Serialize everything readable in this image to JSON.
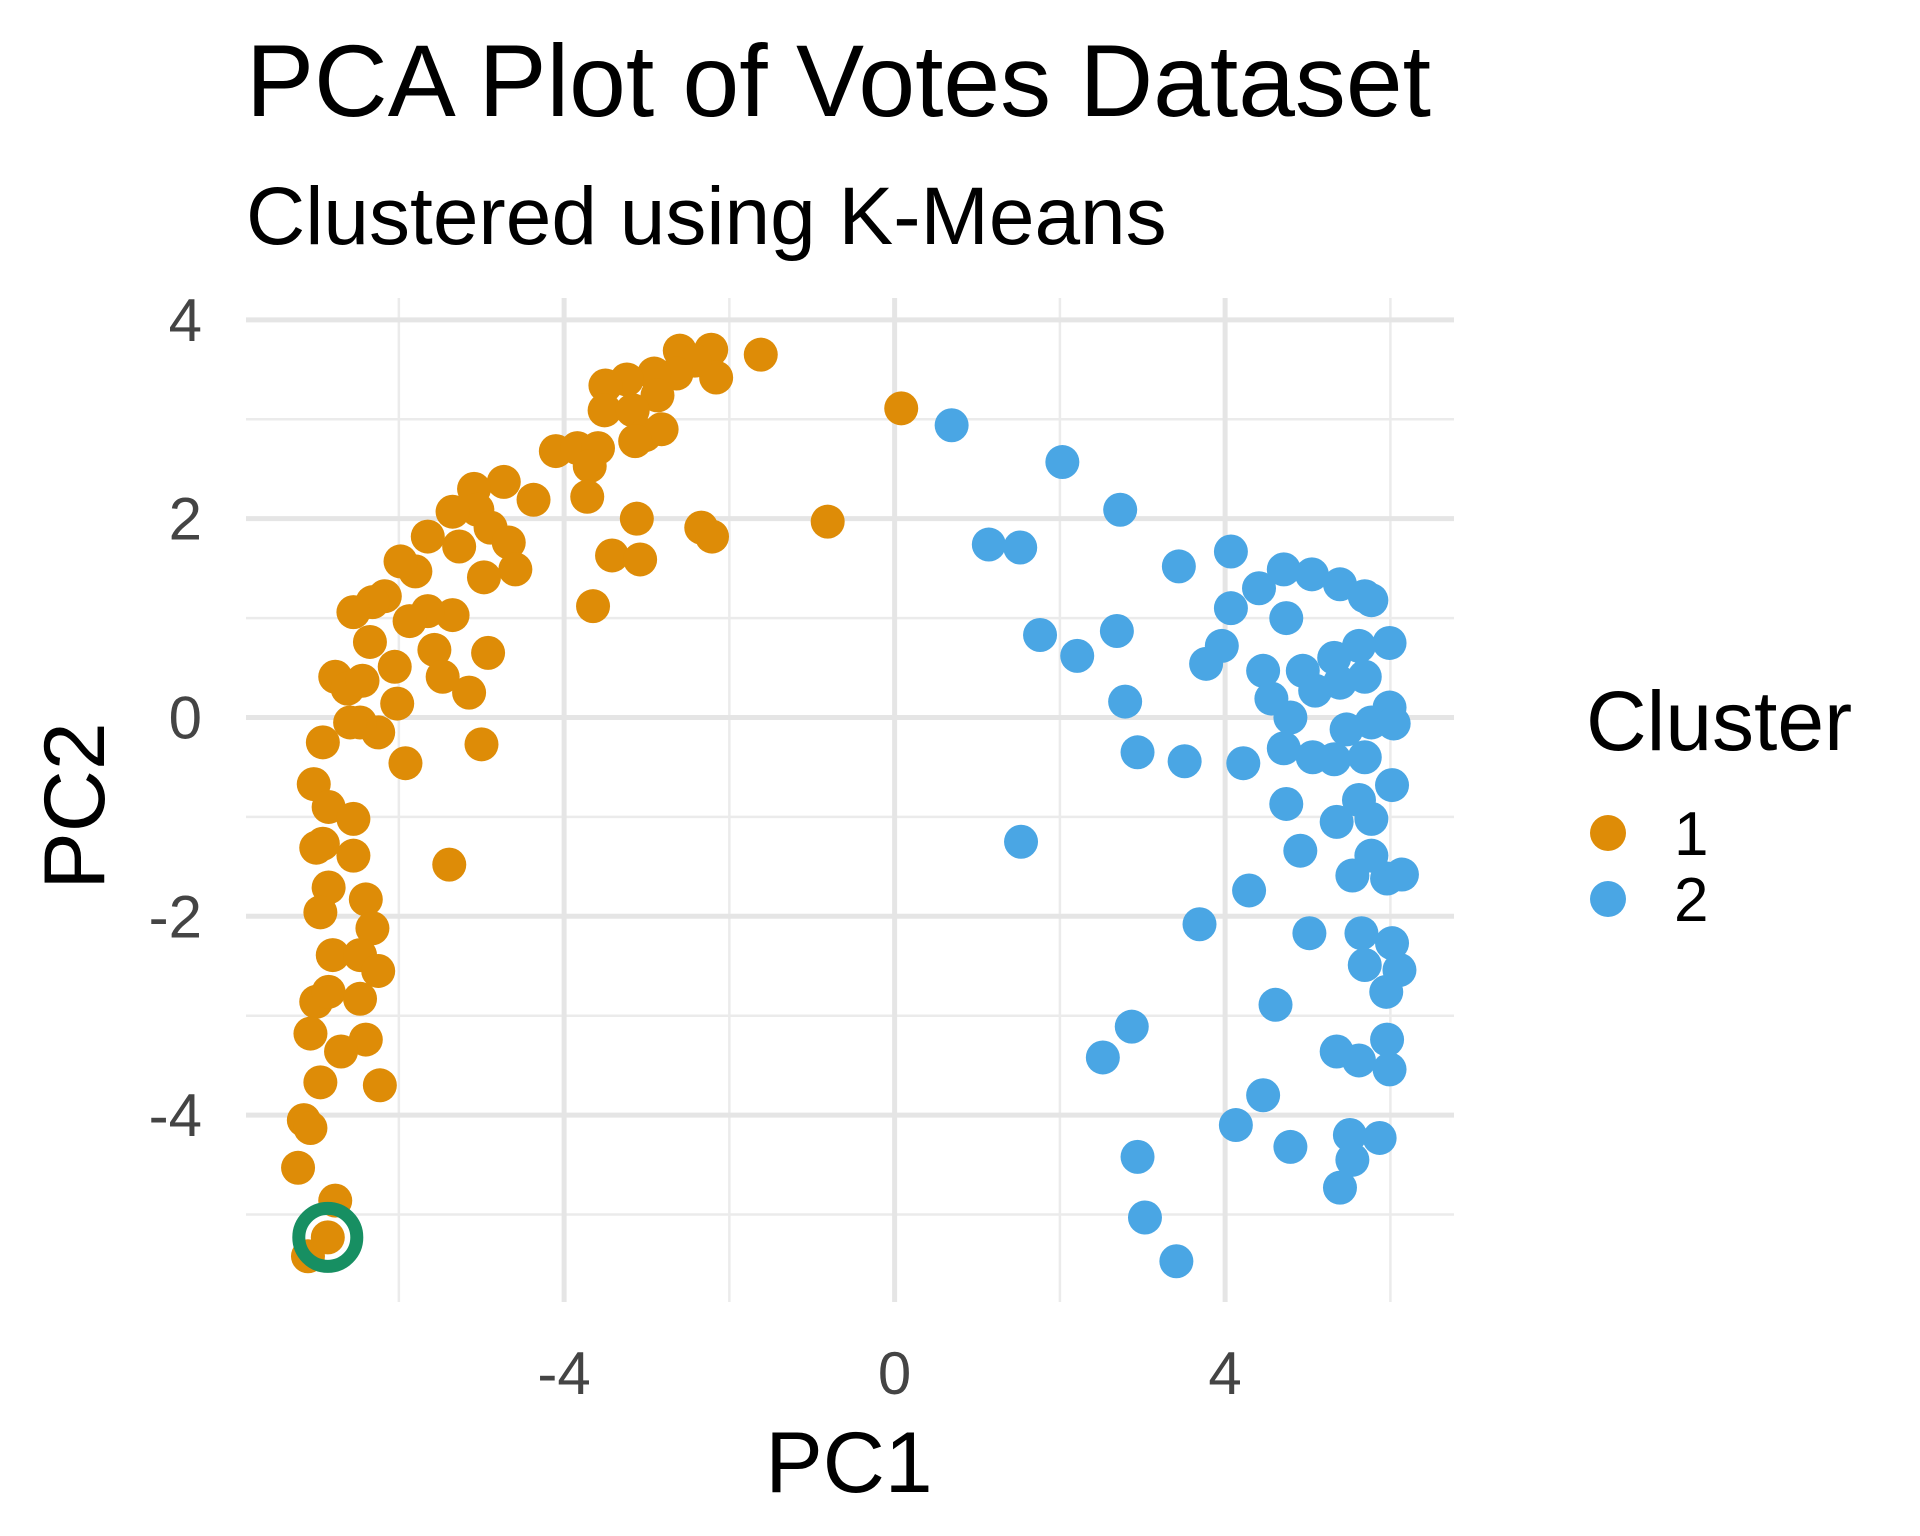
{
  "chart_data": {
    "type": "scatter",
    "title": "PCA Plot of Votes Dataset",
    "subtitle": "Clustered using K-Means",
    "xlabel": "PC1",
    "ylabel": "PC2",
    "xlim": [
      -7.85,
      6.77
    ],
    "ylim": [
      -5.88,
      4.22
    ],
    "x_ticks": [
      -4,
      0,
      4
    ],
    "x_tick_labels": [
      "-4",
      "0",
      "4"
    ],
    "y_ticks": [
      -4,
      -2,
      0,
      2,
      4
    ],
    "y_tick_labels": [
      "-4",
      "-2",
      "0",
      "2",
      "4"
    ],
    "grid": true,
    "legend": {
      "title": "Cluster",
      "placement": "right",
      "entries": [
        "1",
        "2"
      ]
    },
    "colors": {
      "1": "#DE8C07",
      "2": "#4AA6E4",
      "highlight": "#178F62"
    },
    "highlighted_point": {
      "x": -6.86,
      "y": -5.23,
      "cluster": "1"
    },
    "series": [
      {
        "name": "1",
        "points": [
          [
            -1.62,
            3.65
          ],
          [
            0.08,
            3.11
          ],
          [
            -0.81,
            1.97
          ],
          [
            -2.6,
            3.69
          ],
          [
            -2.22,
            3.7
          ],
          [
            -2.16,
            3.42
          ],
          [
            -2.42,
            3.59
          ],
          [
            -2.64,
            3.46
          ],
          [
            -2.91,
            3.46
          ],
          [
            -2.87,
            3.24
          ],
          [
            -3.24,
            3.4
          ],
          [
            -3.5,
            3.34
          ],
          [
            -3.51,
            3.09
          ],
          [
            -3.17,
            3.09
          ],
          [
            -3.02,
            2.84
          ],
          [
            -2.82,
            2.9
          ],
          [
            -3.14,
            2.78
          ],
          [
            -4.1,
            2.68
          ],
          [
            -3.84,
            2.71
          ],
          [
            -3.59,
            2.71
          ],
          [
            -3.69,
            2.53
          ],
          [
            -3.72,
            2.22
          ],
          [
            -3.12,
            2.0
          ],
          [
            -3.42,
            1.63
          ],
          [
            -3.08,
            1.59
          ],
          [
            -3.65,
            1.12
          ],
          [
            -2.34,
            1.91
          ],
          [
            -2.21,
            1.82
          ],
          [
            -4.73,
            2.37
          ],
          [
            -4.37,
            2.19
          ],
          [
            -5.09,
            2.3
          ],
          [
            -5.05,
            2.09
          ],
          [
            -5.35,
            2.07
          ],
          [
            -4.89,
            1.91
          ],
          [
            -4.67,
            1.76
          ],
          [
            -4.59,
            1.49
          ],
          [
            -4.97,
            1.41
          ],
          [
            -5.27,
            1.72
          ],
          [
            -5.65,
            1.82
          ],
          [
            -5.8,
            1.47
          ],
          [
            -5.98,
            1.57
          ],
          [
            -5.35,
            1.03
          ],
          [
            -5.65,
            1.07
          ],
          [
            -5.87,
            0.97
          ],
          [
            -6.17,
            1.22
          ],
          [
            -6.32,
            1.16
          ],
          [
            -6.55,
            1.06
          ],
          [
            -6.35,
            0.76
          ],
          [
            -6.05,
            0.51
          ],
          [
            -5.57,
            0.68
          ],
          [
            -5.47,
            0.41
          ],
          [
            -5.15,
            0.25
          ],
          [
            -4.92,
            0.65
          ],
          [
            -5.0,
            -0.27
          ],
          [
            -5.39,
            -1.48
          ],
          [
            -5.92,
            -0.46
          ],
          [
            -6.02,
            0.14
          ],
          [
            -6.25,
            -0.15
          ],
          [
            -6.47,
            -0.05
          ],
          [
            -6.59,
            -0.05
          ],
          [
            -6.77,
            0.41
          ],
          [
            -6.62,
            0.29
          ],
          [
            -6.44,
            0.37
          ],
          [
            -6.92,
            -0.25
          ],
          [
            -7.03,
            -0.67
          ],
          [
            -6.85,
            -0.9
          ],
          [
            -6.55,
            -1.02
          ],
          [
            -6.92,
            -1.27
          ],
          [
            -7.0,
            -1.31
          ],
          [
            -6.55,
            -1.39
          ],
          [
            -6.85,
            -1.71
          ],
          [
            -6.4,
            -1.83
          ],
          [
            -6.95,
            -1.96
          ],
          [
            -6.32,
            -2.12
          ],
          [
            -6.8,
            -2.39
          ],
          [
            -6.47,
            -2.39
          ],
          [
            -6.25,
            -2.55
          ],
          [
            -7.0,
            -2.86
          ],
          [
            -6.85,
            -2.76
          ],
          [
            -6.47,
            -2.83
          ],
          [
            -6.4,
            -3.24
          ],
          [
            -7.07,
            -3.18
          ],
          [
            -6.7,
            -3.36
          ],
          [
            -6.95,
            -3.67
          ],
          [
            -6.23,
            -3.7
          ],
          [
            -7.15,
            -4.05
          ],
          [
            -7.07,
            -4.13
          ],
          [
            -7.22,
            -4.53
          ],
          [
            -6.77,
            -4.86
          ],
          [
            -7.1,
            -5.42
          ],
          [
            -6.86,
            -5.23
          ]
        ]
      },
      {
        "name": "2",
        "points": [
          [
            0.69,
            2.94
          ],
          [
            2.03,
            2.57
          ],
          [
            2.73,
            2.09
          ],
          [
            1.14,
            1.74
          ],
          [
            1.52,
            1.71
          ],
          [
            4.07,
            1.67
          ],
          [
            3.44,
            1.52
          ],
          [
            4.41,
            1.3
          ],
          [
            4.71,
            1.49
          ],
          [
            5.05,
            1.44
          ],
          [
            5.39,
            1.34
          ],
          [
            5.69,
            1.22
          ],
          [
            5.77,
            1.18
          ],
          [
            4.07,
            1.1
          ],
          [
            4.74,
            1.0
          ],
          [
            1.76,
            0.83
          ],
          [
            2.21,
            0.62
          ],
          [
            2.69,
            0.87
          ],
          [
            3.96,
            0.72
          ],
          [
            3.77,
            0.54
          ],
          [
            4.46,
            0.47
          ],
          [
            4.94,
            0.47
          ],
          [
            5.32,
            0.6
          ],
          [
            5.62,
            0.72
          ],
          [
            5.99,
            0.75
          ],
          [
            5.69,
            0.41
          ],
          [
            5.39,
            0.35
          ],
          [
            5.09,
            0.27
          ],
          [
            4.56,
            0.19
          ],
          [
            2.79,
            0.16
          ],
          [
            4.79,
            0.0
          ],
          [
            5.99,
            0.1
          ],
          [
            5.77,
            -0.05
          ],
          [
            5.47,
            -0.12
          ],
          [
            6.04,
            -0.06
          ],
          [
            2.94,
            -0.35
          ],
          [
            3.51,
            -0.44
          ],
          [
            4.22,
            -0.46
          ],
          [
            4.71,
            -0.31
          ],
          [
            5.06,
            -0.4
          ],
          [
            5.32,
            -0.42
          ],
          [
            5.69,
            -0.4
          ],
          [
            4.74,
            -0.87
          ],
          [
            5.35,
            -1.05
          ],
          [
            5.77,
            -1.02
          ],
          [
            6.02,
            -0.68
          ],
          [
            5.62,
            -0.83
          ],
          [
            4.91,
            -1.34
          ],
          [
            1.53,
            -1.25
          ],
          [
            4.29,
            -1.74
          ],
          [
            5.54,
            -1.59
          ],
          [
            5.96,
            -1.62
          ],
          [
            6.14,
            -1.58
          ],
          [
            5.77,
            -1.39
          ],
          [
            3.69,
            -2.08
          ],
          [
            5.02,
            -2.17
          ],
          [
            5.65,
            -2.17
          ],
          [
            6.02,
            -2.27
          ],
          [
            5.69,
            -2.49
          ],
          [
            6.11,
            -2.54
          ],
          [
            5.95,
            -2.76
          ],
          [
            4.61,
            -2.89
          ],
          [
            2.87,
            -3.11
          ],
          [
            2.52,
            -3.42
          ],
          [
            5.35,
            -3.36
          ],
          [
            5.62,
            -3.45
          ],
          [
            5.96,
            -3.24
          ],
          [
            5.99,
            -3.54
          ],
          [
            4.46,
            -3.8
          ],
          [
            4.13,
            -4.1
          ],
          [
            4.79,
            -4.32
          ],
          [
            5.51,
            -4.2
          ],
          [
            5.54,
            -4.45
          ],
          [
            5.87,
            -4.23
          ],
          [
            5.39,
            -4.73
          ],
          [
            2.94,
            -4.42
          ],
          [
            3.03,
            -5.03
          ],
          [
            3.41,
            -5.47
          ]
        ]
      }
    ]
  }
}
